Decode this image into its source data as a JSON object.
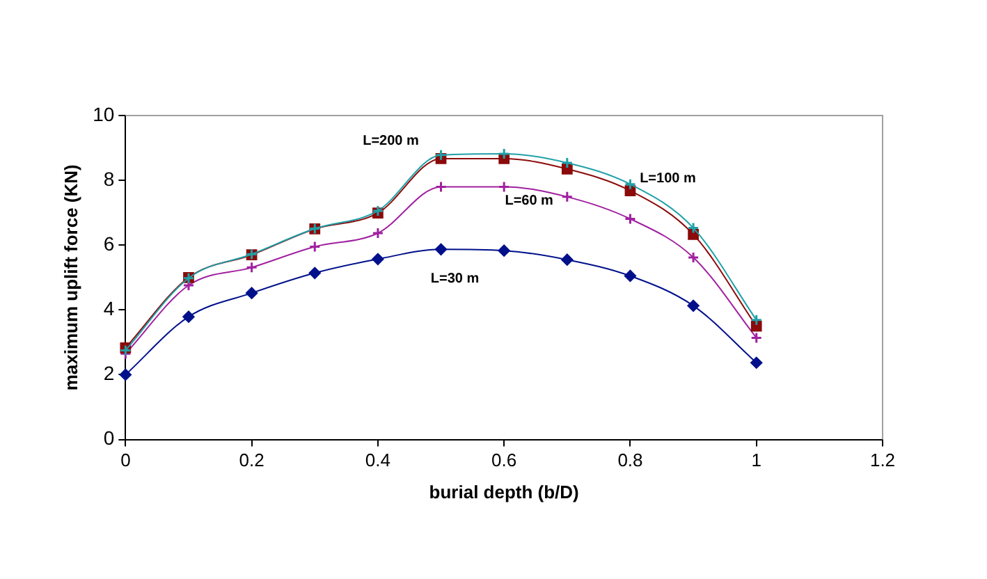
{
  "chart_data": {
    "type": "line",
    "xlabel": "burial depth (b/D)",
    "ylabel": "maximum uplift force (KN)",
    "x": [
      0,
      0.1,
      0.2,
      0.3,
      0.4,
      0.5,
      0.6,
      0.7,
      0.8,
      0.9,
      1
    ],
    "xlim": [
      0,
      1.2
    ],
    "xticks": [
      0,
      0.2,
      0.4,
      0.6,
      0.8,
      1,
      1.2
    ],
    "ylim": [
      0,
      10
    ],
    "yticks": [
      0,
      2,
      4,
      6,
      8,
      10
    ],
    "grid": false,
    "legend": false,
    "series": [
      {
        "name": "L=200 m",
        "color": "#20a0a8",
        "marker": "cross",
        "values": [
          2.75,
          4.98,
          5.72,
          6.51,
          7.06,
          8.78,
          8.82,
          8.54,
          7.88,
          6.53,
          3.69
        ]
      },
      {
        "name": "L=100 m",
        "color": "#8b0a0a",
        "marker": "square",
        "values": [
          2.83,
          5.0,
          5.7,
          6.5,
          6.99,
          8.67,
          8.67,
          8.35,
          7.68,
          6.33,
          3.5
        ]
      },
      {
        "name": "L=60 m",
        "color": "#a020a0",
        "marker": "cross",
        "values": [
          2.65,
          4.76,
          5.31,
          5.95,
          6.37,
          7.8,
          7.8,
          7.49,
          6.81,
          5.62,
          3.14
        ]
      },
      {
        "name": "L=30 m",
        "color": "#00108b",
        "marker": "diamond",
        "values": [
          2.0,
          3.79,
          4.52,
          5.14,
          5.57,
          5.87,
          5.83,
          5.55,
          5.05,
          4.13,
          2.37
        ]
      }
    ]
  }
}
